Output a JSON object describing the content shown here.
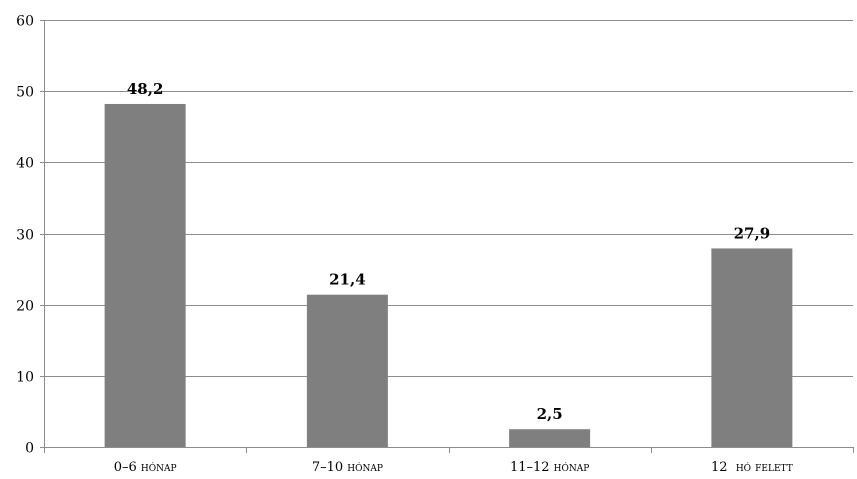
{
  "chart_data": {
    "type": "bar",
    "categories": [
      "0–6 hónap",
      "7–10 hónap",
      "11–12 hónap",
      "12  hó felett"
    ],
    "values": [
      48.2,
      21.4,
      2.5,
      27.9
    ],
    "value_labels": [
      "48,2",
      "21,4",
      "2,5",
      "27,9"
    ],
    "yticks": [
      0,
      10,
      20,
      30,
      40,
      50,
      60
    ],
    "ylim": [
      0,
      60
    ],
    "grid": true,
    "legend": "none",
    "bar_color": "#7f7f7f"
  }
}
